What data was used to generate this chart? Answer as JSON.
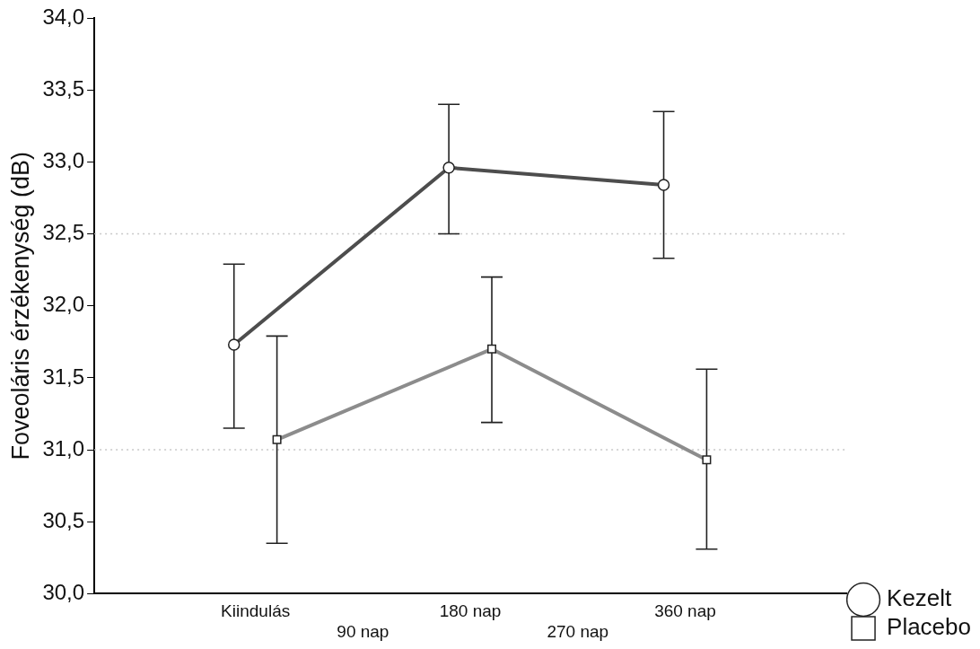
{
  "chart_data": {
    "type": "line",
    "ylabel": "Foveoláris érzékenység (dB)",
    "categories": [
      "Kiindulás",
      "90 nap",
      "180 nap",
      "270 nap",
      "360 nap"
    ],
    "ylim": [
      30,
      34
    ],
    "yticks": [
      {
        "value": 30,
        "label": "30,0"
      },
      {
        "value": 30.5,
        "label": "30,5"
      },
      {
        "value": 31,
        "label": "31,0"
      },
      {
        "value": 31.5,
        "label": "31,5"
      },
      {
        "value": 32,
        "label": "32,0"
      },
      {
        "value": 32.5,
        "label": "32,5"
      },
      {
        "value": 33,
        "label": "33,0"
      },
      {
        "value": 33.5,
        "label": "33,5"
      },
      {
        "value": 34,
        "label": "34,0"
      }
    ],
    "series": [
      {
        "name": "Kezelt",
        "color": "#4d4d4d",
        "marker": "circle",
        "values": [
          31.73,
          null,
          32.96,
          null,
          32.84
        ],
        "errors": [
          [
            31.15,
            32.29
          ],
          null,
          [
            32.5,
            33.4
          ],
          null,
          [
            32.33,
            33.35
          ]
        ]
      },
      {
        "name": "Placebo",
        "color": "#8c8c8c",
        "marker": "square",
        "values": [
          31.07,
          null,
          31.7,
          null,
          30.93
        ],
        "errors": [
          [
            30.35,
            31.79
          ],
          null,
          [
            31.19,
            32.2
          ],
          null,
          [
            30.31,
            31.56
          ]
        ]
      }
    ],
    "ref_lines": [
      {
        "axis": "y",
        "value": 31,
        "color": "#c8c8c8",
        "line_style": "dotted"
      },
      {
        "axis": "y",
        "value": 32.5,
        "color": "#c8c8c8",
        "line_style": "dotted"
      }
    ],
    "legend": "bottom right",
    "grid": false
  }
}
